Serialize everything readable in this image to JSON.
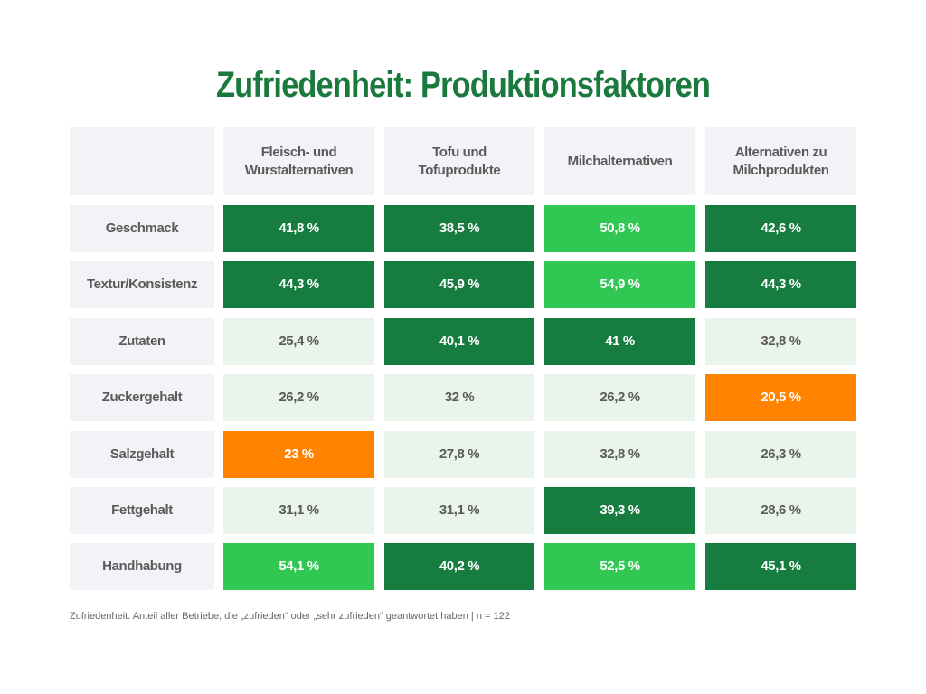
{
  "chart_data": {
    "type": "table",
    "title": "Zufriedenheit: Produktionsfaktoren",
    "columns": [
      "Fleisch- und Wurstalternativen",
      "Tofu und Tofuprodukte",
      "Milchalternativen",
      "Alternativen zu Milchprodukten"
    ],
    "rows": [
      {
        "label": "Geschmack",
        "values": [
          "41,8 %",
          "38,5 %",
          "50,8 %",
          "42,6 %"
        ],
        "styles": [
          "dark",
          "dark",
          "top",
          "dark"
        ]
      },
      {
        "label": "Textur/Konsistenz",
        "values": [
          "44,3 %",
          "45,9 %",
          "54,9 %",
          "44,3 %"
        ],
        "styles": [
          "dark",
          "dark",
          "top",
          "dark"
        ]
      },
      {
        "label": "Zutaten",
        "values": [
          "25,4 %",
          "40,1 %",
          "41 %",
          "32,8 %"
        ],
        "styles": [
          "light",
          "dark",
          "dark",
          "light"
        ]
      },
      {
        "label": "Zuckergehalt",
        "values": [
          "26,2 %",
          "32 %",
          "26,2 %",
          "20,5 %"
        ],
        "styles": [
          "light",
          "light",
          "light",
          "low"
        ]
      },
      {
        "label": "Salzgehalt",
        "values": [
          "23 %",
          "27,8 %",
          "32,8 %",
          "26,3 %"
        ],
        "styles": [
          "low",
          "light",
          "light",
          "light"
        ]
      },
      {
        "label": "Fettgehalt",
        "values": [
          "31,1 %",
          "31,1 %",
          "39,3 %",
          "28,6 %"
        ],
        "styles": [
          "light",
          "light",
          "dark",
          "light"
        ]
      },
      {
        "label": "Handhabung",
        "values": [
          "54,1 %",
          "40,2 %",
          "52,5 %",
          "45,1 %"
        ],
        "styles": [
          "top",
          "dark",
          "top",
          "dark"
        ]
      }
    ],
    "colors": {
      "dark": "#177c3f",
      "top": "#30c752",
      "light": "#e9f4eb",
      "low": "#ff8300",
      "header": "#f2f3f7"
    }
  },
  "footnote": "Zufriedenheit: Anteil aller Betriebe, die „zufrieden“ oder „sehr zufrieden“ geantwortet haben | n = 122"
}
